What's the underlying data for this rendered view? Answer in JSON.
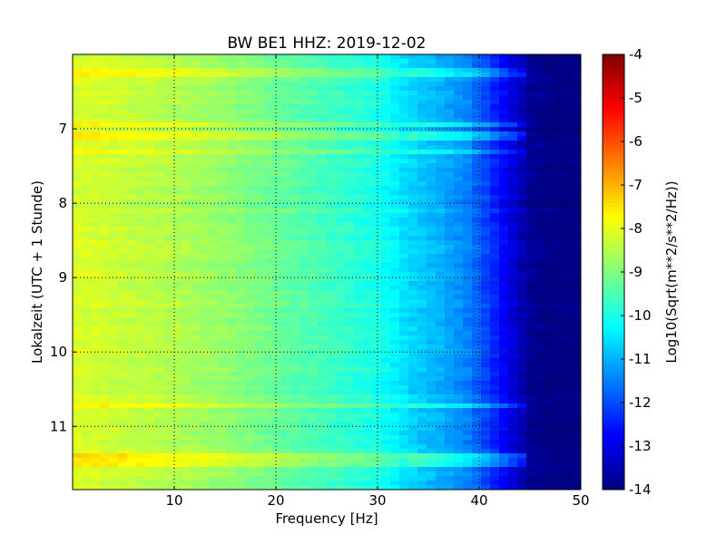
{
  "chart_data": {
    "type": "heatmap",
    "title": "BW BE1 HHZ: 2019-12-02",
    "xlabel": "Frequency [Hz]",
    "ylabel": "Lokalzeit (UTC + 1 Stunde)",
    "xlim": [
      0,
      50
    ],
    "ylim": [
      6.0,
      11.85
    ],
    "y_inverted": true,
    "x_ticks": [
      "10",
      "20",
      "30",
      "40",
      "50"
    ],
    "x_tick_values": [
      10,
      20,
      30,
      40,
      50
    ],
    "y_ticks": [
      "7",
      "8",
      "9",
      "10",
      "11"
    ],
    "y_tick_values": [
      7,
      8,
      9,
      10,
      11
    ],
    "grid": true,
    "colormap": "jet",
    "colorbar": {
      "label": "Log10(Sqrt(m**2/s**2/Hz))",
      "min": -14,
      "max": -4,
      "ticks": [
        "-4",
        "-5",
        "-6",
        "-7",
        "-8",
        "-9",
        "-10",
        "-11",
        "-12",
        "-13",
        "-14"
      ],
      "tick_values": [
        -4,
        -5,
        -6,
        -7,
        -8,
        -9,
        -10,
        -11,
        -12,
        -13,
        -14
      ]
    },
    "spectrum_profile": {
      "frequency_hz": [
        0,
        5,
        10,
        15,
        20,
        25,
        30,
        33,
        36,
        39,
        41,
        43,
        45,
        47,
        50
      ],
      "log10_value": [
        -8.1,
        -8.3,
        -8.5,
        -8.8,
        -9.2,
        -9.6,
        -10.0,
        -10.6,
        -11.0,
        -11.5,
        -12.2,
        -13.0,
        -13.8,
        -14.0,
        -14.0
      ]
    },
    "bright_bands": [
      {
        "time": 6.23,
        "delta": 0.5
      },
      {
        "time": 6.95,
        "delta": 0.6
      },
      {
        "time": 7.1,
        "delta": 0.6
      },
      {
        "time": 7.3,
        "delta": 0.5
      },
      {
        "time": 10.73,
        "delta": 0.6
      },
      {
        "time": 11.43,
        "delta": 0.7
      },
      {
        "time": 11.52,
        "delta": 0.6
      }
    ]
  }
}
